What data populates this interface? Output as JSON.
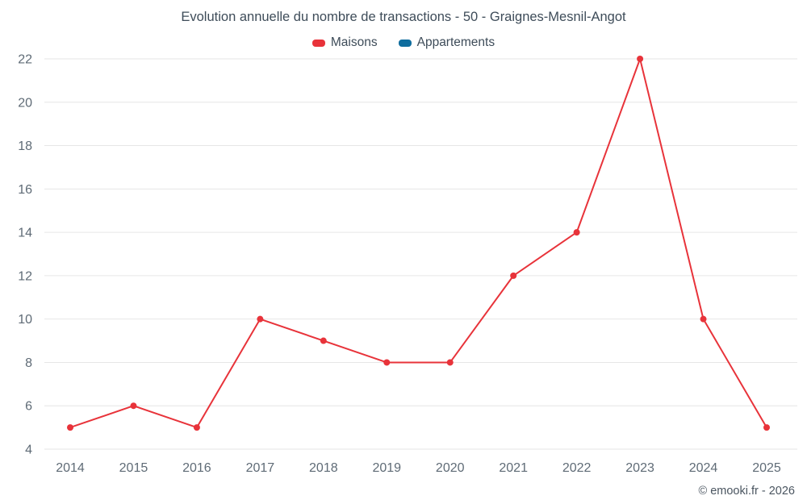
{
  "chart": {
    "title": "Evolution annuelle du nombre de transactions - 50 - Graignes-Mesnil-Angot",
    "footer": "© emooki.fr - 2026"
  },
  "chart_data": {
    "type": "line",
    "title": "Evolution annuelle du nombre de transactions - 50 - Graignes-Mesnil-Angot",
    "categories": [
      "2014",
      "2015",
      "2016",
      "2017",
      "2018",
      "2019",
      "2020",
      "2021",
      "2022",
      "2023",
      "2024",
      "2025"
    ],
    "series": [
      {
        "name": "Maisons",
        "color": "#e8333a",
        "values": [
          5,
          6,
          5,
          10,
          9,
          8,
          8,
          12,
          14,
          22,
          10,
          5
        ]
      },
      {
        "name": "Appartements",
        "color": "#0f6d9e",
        "values": []
      }
    ],
    "xlabel": "",
    "ylabel": "",
    "ylim": [
      4,
      22
    ],
    "ytick_step": 2,
    "grid": "horizontal",
    "grid_color": "#e6e6e6",
    "tick_label_color": "#5f6b76",
    "legend_position": "top"
  }
}
